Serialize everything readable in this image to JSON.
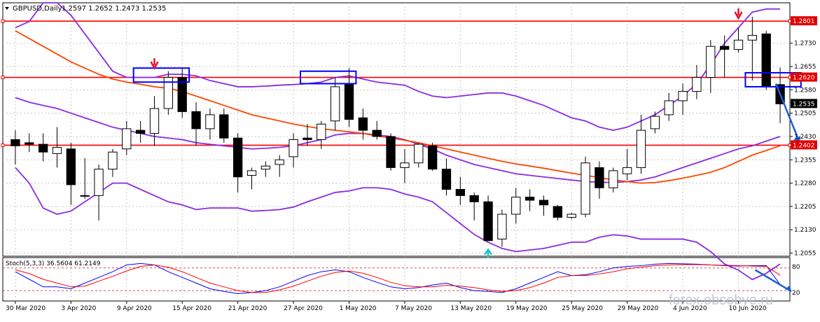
{
  "header": {
    "symbol_label": "GBPUSD,Daily",
    "ohlc_text": "1.2597 1.2652 1.2473 1.2535"
  },
  "stoch": {
    "label": "Stoch(5,3,3) 36.5604 61.2149",
    "level_high": "80",
    "level_low": "20",
    "levels": [
      80,
      20
    ]
  },
  "watermark": "forex.obsobye.ru",
  "colors": {
    "candle_bull": "#ffffff",
    "candle_bear": "#000000",
    "bollinger": "#8a2be2",
    "ma": "#ff4500",
    "hline": "#ff0000",
    "box": "#0000ff",
    "arrow_forecast": "#1e5fd8",
    "arrow_top": "#e8112d",
    "arrow_bottom": "#19c3c3",
    "stoch_main": "#0000ff",
    "stoch_signal": "#ff0000"
  },
  "chart_data": {
    "type": "candlestick",
    "ylim": [
      1.2045,
      1.286
    ],
    "y_ticks": [
      "1.2730",
      "1.2655",
      "1.2580",
      "1.2505",
      "1.2430",
      "1.2355",
      "1.2280",
      "1.2205",
      "1.2130",
      "1.2055"
    ],
    "x_tick_labels": [
      "30 Mar 2020",
      "3 Apr 2020",
      "9 Apr 2020",
      "15 Apr 2020",
      "21 Apr 2020",
      "27 Apr 2020",
      "1 May 2020",
      "7 May 2020",
      "13 May 2020",
      "19 May 2020",
      "25 May 2020",
      "29 May 2020",
      "4 Jun 2020",
      "10 Jun 2020"
    ],
    "horizontal_levels": [
      {
        "label": "1.2801",
        "value": 1.2801
      },
      {
        "label": "1.2620",
        "value": 1.262
      },
      {
        "label": "1.2535",
        "value": 1.2535
      },
      {
        "label": "1.2402",
        "value": 1.2402
      }
    ],
    "candles": [
      [
        1.242,
        1.245,
        1.234,
        1.24
      ],
      [
        1.241,
        1.244,
        1.238,
        1.2405
      ],
      [
        1.2405,
        1.244,
        1.235,
        1.238
      ],
      [
        1.2375,
        1.246,
        1.233,
        1.2395
      ],
      [
        1.239,
        1.241,
        1.221,
        1.2275
      ],
      [
        1.224,
        1.236,
        1.223,
        1.224
      ],
      [
        1.224,
        1.234,
        1.216,
        1.2325
      ],
      [
        1.2325,
        1.239,
        1.23,
        1.238
      ],
      [
        1.239,
        1.248,
        1.237,
        1.2455
      ],
      [
        1.245,
        1.248,
        1.241,
        1.244
      ],
      [
        1.244,
        1.256,
        1.24,
        1.252
      ],
      [
        1.252,
        1.264,
        1.25,
        1.262
      ],
      [
        1.262,
        1.265,
        1.249,
        1.251
      ],
      [
        1.251,
        1.254,
        1.24,
        1.2455
      ],
      [
        1.2455,
        1.252,
        1.242,
        1.25
      ],
      [
        1.25,
        1.252,
        1.241,
        1.2425
      ],
      [
        1.2425,
        1.244,
        1.225,
        1.23
      ],
      [
        1.2305,
        1.233,
        1.226,
        1.232
      ],
      [
        1.2325,
        1.235,
        1.23,
        1.2335
      ],
      [
        1.234,
        1.237,
        1.23,
        1.2355
      ],
      [
        1.2365,
        1.244,
        1.233,
        1.242
      ],
      [
        1.2425,
        1.247,
        1.24,
        1.242
      ],
      [
        1.242,
        1.248,
        1.239,
        1.247
      ],
      [
        1.248,
        1.262,
        1.245,
        1.259
      ],
      [
        1.26,
        1.265,
        1.246,
        1.2485
      ],
      [
        1.249,
        1.252,
        1.242,
        1.245
      ],
      [
        1.245,
        1.248,
        1.242,
        1.243
      ],
      [
        1.243,
        1.244,
        1.232,
        1.233
      ],
      [
        1.233,
        1.239,
        1.228,
        1.2345
      ],
      [
        1.2345,
        1.241,
        1.233,
        1.2405
      ],
      [
        1.24,
        1.241,
        1.232,
        1.2325
      ],
      [
        1.2325,
        1.236,
        1.224,
        1.226
      ],
      [
        1.226,
        1.23,
        1.221,
        1.224
      ],
      [
        1.224,
        1.225,
        1.216,
        1.222
      ],
      [
        1.222,
        1.224,
        1.21,
        1.2095
      ],
      [
        1.21,
        1.2195,
        1.2075,
        1.218
      ],
      [
        1.218,
        1.2265,
        1.215,
        1.2235
      ],
      [
        1.2235,
        1.226,
        1.219,
        1.2225
      ],
      [
        1.2225,
        1.224,
        1.2175,
        1.221
      ],
      [
        1.2205,
        1.221,
        1.216,
        1.217
      ],
      [
        1.217,
        1.2185,
        1.2165,
        1.218
      ],
      [
        1.218,
        1.2365,
        1.217,
        1.2345
      ],
      [
        1.233,
        1.235,
        1.223,
        1.2265
      ],
      [
        1.2265,
        1.233,
        1.225,
        1.232
      ],
      [
        1.231,
        1.239,
        1.229,
        1.233
      ],
      [
        1.233,
        1.25,
        1.231,
        1.245
      ],
      [
        1.2455,
        1.251,
        1.244,
        1.2495
      ],
      [
        1.25,
        1.257,
        1.248,
        1.2545
      ],
      [
        1.2545,
        1.26,
        1.25,
        1.2575
      ],
      [
        1.2575,
        1.266,
        1.255,
        1.262
      ],
      [
        1.262,
        1.274,
        1.257,
        1.272
      ],
      [
        1.272,
        1.2755,
        1.262,
        1.271
      ],
      [
        1.271,
        1.278,
        1.27,
        1.274
      ],
      [
        1.274,
        1.2815,
        1.261,
        1.2755
      ],
      [
        1.276,
        1.277,
        1.258,
        1.259
      ],
      [
        1.2597,
        1.2652,
        1.2473,
        1.2535
      ]
    ],
    "bollinger_upper": [
      1.278,
      1.28,
      1.286,
      1.286,
      1.282,
      1.276,
      1.27,
      1.264,
      1.262,
      1.262,
      1.262,
      1.263,
      1.263,
      1.2625,
      1.261,
      1.26,
      1.259,
      1.259,
      1.2592,
      1.2595,
      1.2597,
      1.26,
      1.2605,
      1.262,
      1.2625,
      1.2615,
      1.2605,
      1.26,
      1.2595,
      1.2575,
      1.256,
      1.2555,
      1.256,
      1.2565,
      1.257,
      1.257,
      1.256,
      1.2545,
      1.253,
      1.251,
      1.249,
      1.248,
      1.246,
      1.245,
      1.246,
      1.248,
      1.25,
      1.253,
      1.256,
      1.26,
      1.266,
      1.273,
      1.278,
      1.283,
      1.284,
      1.284
    ],
    "bollinger_middle": [
      1.2555,
      1.254,
      1.253,
      1.252,
      1.2505,
      1.249,
      1.2475,
      1.246,
      1.245,
      1.244,
      1.243,
      1.2425,
      1.242,
      1.241,
      1.2405,
      1.24,
      1.2395,
      1.239,
      1.2392,
      1.2395,
      1.24,
      1.241,
      1.242,
      1.2435,
      1.244,
      1.244,
      1.2435,
      1.243,
      1.242,
      1.2405,
      1.239,
      1.237,
      1.2355,
      1.234,
      1.233,
      1.232,
      1.231,
      1.2305,
      1.23,
      1.2295,
      1.229,
      1.2285,
      1.2283,
      1.2282,
      1.2285,
      1.229,
      1.23,
      1.2315,
      1.233,
      1.2345,
      1.236,
      1.2375,
      1.239,
      1.24,
      1.2415,
      1.243
    ],
    "bollinger_lower": [
      1.233,
      1.228,
      1.22,
      1.218,
      1.219,
      1.222,
      1.225,
      1.228,
      1.228,
      1.226,
      1.224,
      1.222,
      1.221,
      1.2195,
      1.22,
      1.22,
      1.22,
      1.219,
      1.2192,
      1.2195,
      1.2203,
      1.222,
      1.2235,
      1.225,
      1.2255,
      1.2265,
      1.2265,
      1.226,
      1.2245,
      1.2235,
      1.222,
      1.2185,
      1.215,
      1.2115,
      1.209,
      1.207,
      1.206,
      1.2065,
      1.207,
      1.208,
      1.209,
      1.209,
      1.2106,
      1.2114,
      1.211,
      1.21,
      1.21,
      1.21,
      1.21,
      1.209,
      1.206,
      1.202,
      1.2,
      1.197,
      1.199,
      1.202
    ],
    "ma": [
      1.277,
      1.2745,
      1.272,
      1.2695,
      1.267,
      1.265,
      1.263,
      1.2615,
      1.2605,
      1.2598,
      1.259,
      1.2585,
      1.2575,
      1.256,
      1.2545,
      1.253,
      1.2515,
      1.25,
      1.249,
      1.248,
      1.247,
      1.2462,
      1.2455,
      1.245,
      1.2445,
      1.244,
      1.2432,
      1.2425,
      1.2418,
      1.241,
      1.24,
      1.239,
      1.238,
      1.237,
      1.236,
      1.235,
      1.2342,
      1.2335,
      1.2328,
      1.232,
      1.2312,
      1.2305,
      1.2298,
      1.229,
      1.2285,
      1.228,
      1.2282,
      1.2288,
      1.2296,
      1.2305,
      1.2315,
      1.233,
      1.235,
      1.237,
      1.2385,
      1.24
    ],
    "boxes": [
      {
        "from": 9,
        "to": 13,
        "top": 1.265,
        "bottom": 1.2605
      },
      {
        "from": 21,
        "to": 25,
        "top": 1.264,
        "bottom": 1.26
      },
      {
        "from": 53,
        "to": 57,
        "top": 1.2635,
        "bottom": 1.259
      }
    ],
    "stoch_main": [
      70,
      50,
      30,
      30,
      25,
      40,
      55,
      70,
      88,
      92,
      88,
      70,
      55,
      40,
      25,
      18,
      12,
      15,
      20,
      30,
      45,
      60,
      70,
      75,
      70,
      55,
      42,
      30,
      25,
      28,
      35,
      40,
      28,
      20,
      18,
      15,
      25,
      40,
      55,
      70,
      60,
      62,
      70,
      80,
      84,
      86,
      90,
      92,
      91,
      90,
      88,
      86,
      85,
      86,
      86,
      36
    ],
    "stoch_signal": [
      75,
      65,
      50,
      40,
      30,
      32,
      45,
      58,
      72,
      84,
      88,
      82,
      70,
      55,
      40,
      30,
      20,
      15,
      15,
      22,
      32,
      45,
      58,
      68,
      72,
      66,
      55,
      42,
      33,
      30,
      30,
      34,
      32,
      28,
      22,
      18,
      20,
      28,
      40,
      55,
      60,
      60,
      64,
      70,
      78,
      82,
      86,
      88,
      89,
      89,
      88,
      87,
      86,
      85,
      84,
      61
    ]
  }
}
